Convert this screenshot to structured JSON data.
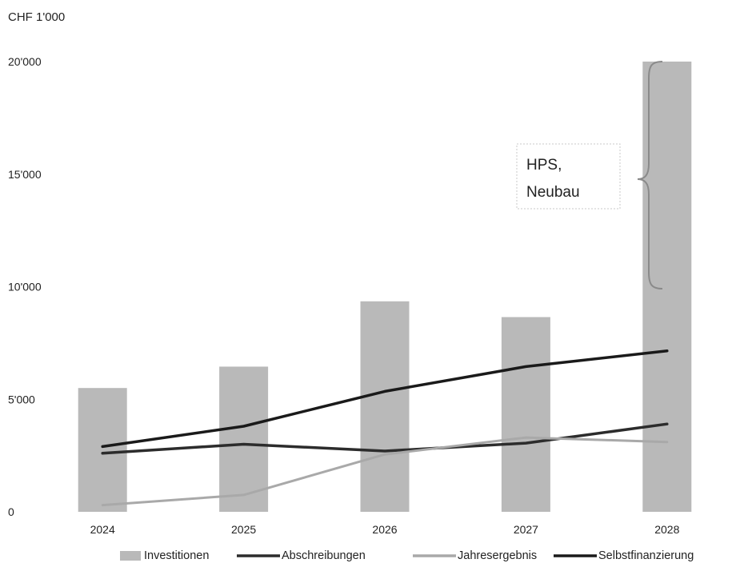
{
  "chart_data": {
    "type": "bar",
    "unit_label": "CHF 1'000",
    "categories": [
      "2024",
      "2025",
      "2026",
      "2027",
      "2028"
    ],
    "y_ticks": [
      {
        "value": 0,
        "label": "0"
      },
      {
        "value": 5000,
        "label": "5'000"
      },
      {
        "value": 10000,
        "label": "10'000"
      },
      {
        "value": 15000,
        "label": "15'000"
      },
      {
        "value": 20000,
        "label": "20'000"
      }
    ],
    "ylim": [
      0,
      20000
    ],
    "grid": false,
    "legend_position": "bottom",
    "series": [
      {
        "name": "Investitionen",
        "kind": "bar",
        "color": "#b9b9b9",
        "values": [
          5500,
          6450,
          9350,
          8650,
          20000
        ]
      },
      {
        "name": "Abschreibungen",
        "kind": "line",
        "color": "#2c2c2c",
        "values": [
          2600,
          3000,
          2700,
          3050,
          3900
        ]
      },
      {
        "name": "Jahresergebnis",
        "kind": "line",
        "color": "#a9a9a9",
        "values": [
          300,
          750,
          2550,
          3300,
          3100
        ]
      },
      {
        "name": "Selbstfinanzierung",
        "kind": "line",
        "color": "#1a1a1a",
        "values": [
          2900,
          3800,
          5350,
          6450,
          7150
        ]
      }
    ],
    "annotation": {
      "lines": [
        "HPS,",
        "Neubau"
      ],
      "target_category": "2028",
      "range": [
        10000,
        20000
      ]
    }
  }
}
